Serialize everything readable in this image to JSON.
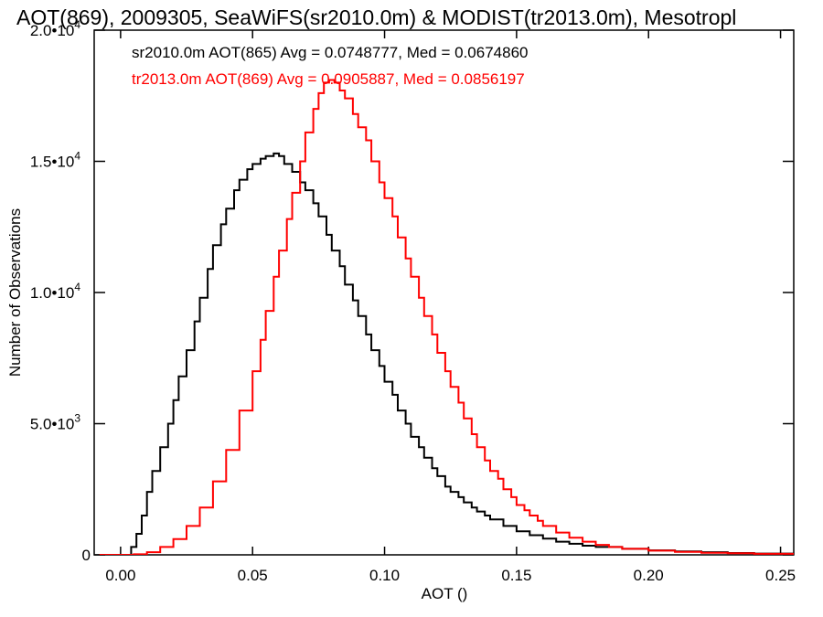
{
  "chart_data": {
    "type": "line",
    "title": "AOT(869), 2009305, SeaWiFS(sr2010.0m) & MODIST(tr2013.0m), Mesotropl",
    "xlabel": "AOT ()",
    "ylabel": "Number of Observations",
    "xlim": [
      -0.01,
      0.255
    ],
    "ylim": [
      0,
      20000
    ],
    "x_ticks": [
      {
        "value": 0.0,
        "label": "0.00"
      },
      {
        "value": 0.05,
        "label": "0.05"
      },
      {
        "value": 0.1,
        "label": "0.10"
      },
      {
        "value": 0.15,
        "label": "0.15"
      },
      {
        "value": 0.2,
        "label": "0.20"
      },
      {
        "value": 0.25,
        "label": "0.25"
      }
    ],
    "y_ticks": [
      {
        "value": 0,
        "label": "0",
        "exp": ""
      },
      {
        "value": 5000,
        "label": "5.0•10",
        "exp": "3"
      },
      {
        "value": 10000,
        "label": "1.0•10",
        "exp": "4"
      },
      {
        "value": 15000,
        "label": "1.5•10",
        "exp": "4"
      },
      {
        "value": 20000,
        "label": "2.0•10",
        "exp": "4"
      }
    ],
    "grid": false,
    "annotations": [
      {
        "text": "sr2010.0m AOT(865) Avg = 0.0748777, Med = 0.0674860",
        "color": "#000000"
      },
      {
        "text": "tr2013.0m AOT(869) Avg = 0.0905887, Med = 0.0856197",
        "color": "#ff0000"
      }
    ],
    "series": [
      {
        "color": "#000000",
        "x": [
          -0.008,
          0.0,
          0.004,
          0.006,
          0.008,
          0.01,
          0.012,
          0.015,
          0.018,
          0.02,
          0.022,
          0.025,
          0.028,
          0.03,
          0.033,
          0.035,
          0.038,
          0.04,
          0.043,
          0.045,
          0.048,
          0.05,
          0.053,
          0.055,
          0.058,
          0.06,
          0.062,
          0.065,
          0.068,
          0.07,
          0.073,
          0.075,
          0.078,
          0.08,
          0.083,
          0.085,
          0.088,
          0.09,
          0.093,
          0.095,
          0.098,
          0.1,
          0.103,
          0.105,
          0.108,
          0.11,
          0.113,
          0.115,
          0.118,
          0.12,
          0.123,
          0.125,
          0.128,
          0.13,
          0.133,
          0.135,
          0.138,
          0.14,
          0.145,
          0.15,
          0.155,
          0.16,
          0.165,
          0.17,
          0.175,
          0.18,
          0.19,
          0.2,
          0.21,
          0.22,
          0.23,
          0.24,
          0.255
        ],
        "y": [
          0,
          0,
          300,
          800,
          1500,
          2400,
          3200,
          4100,
          5000,
          5900,
          6800,
          7800,
          8900,
          9800,
          10900,
          11800,
          12600,
          13200,
          13900,
          14300,
          14700,
          14900,
          15100,
          15200,
          15300,
          15200,
          14900,
          14600,
          14200,
          13900,
          13400,
          12900,
          12200,
          11600,
          11000,
          10300,
          9700,
          9100,
          8400,
          7800,
          7200,
          6600,
          6100,
          5500,
          5000,
          4500,
          4100,
          3700,
          3300,
          3000,
          2600,
          2400,
          2200,
          2000,
          1800,
          1650,
          1500,
          1350,
          1100,
          900,
          750,
          620,
          500,
          420,
          350,
          300,
          230,
          170,
          130,
          100,
          70,
          50,
          30
        ]
      },
      {
        "color": "#ff0000",
        "x": [
          -0.008,
          0.005,
          0.01,
          0.015,
          0.02,
          0.025,
          0.03,
          0.035,
          0.04,
          0.045,
          0.05,
          0.053,
          0.055,
          0.058,
          0.06,
          0.063,
          0.065,
          0.068,
          0.07,
          0.073,
          0.075,
          0.077,
          0.079,
          0.081,
          0.083,
          0.085,
          0.088,
          0.09,
          0.093,
          0.095,
          0.098,
          0.1,
          0.103,
          0.105,
          0.108,
          0.11,
          0.113,
          0.115,
          0.118,
          0.12,
          0.123,
          0.125,
          0.128,
          0.13,
          0.133,
          0.135,
          0.138,
          0.14,
          0.143,
          0.145,
          0.148,
          0.15,
          0.153,
          0.155,
          0.158,
          0.16,
          0.165,
          0.17,
          0.175,
          0.18,
          0.185,
          0.19,
          0.2,
          0.21,
          0.22,
          0.23,
          0.24,
          0.255
        ],
        "y": [
          0,
          20,
          100,
          300,
          600,
          1100,
          1800,
          2800,
          4000,
          5500,
          7000,
          8200,
          9300,
          10600,
          11600,
          12800,
          13800,
          15000,
          16100,
          17000,
          17600,
          18000,
          18100,
          18000,
          17700,
          17400,
          16800,
          16300,
          15800,
          15000,
          14200,
          13600,
          12900,
          12100,
          11300,
          10600,
          9800,
          9100,
          8400,
          7700,
          7000,
          6400,
          5800,
          5200,
          4600,
          4100,
          3600,
          3200,
          2900,
          2500,
          2200,
          1900,
          1700,
          1500,
          1300,
          1100,
          850,
          650,
          500,
          380,
          300,
          230,
          160,
          110,
          80,
          60,
          40,
          20
        ]
      }
    ]
  }
}
